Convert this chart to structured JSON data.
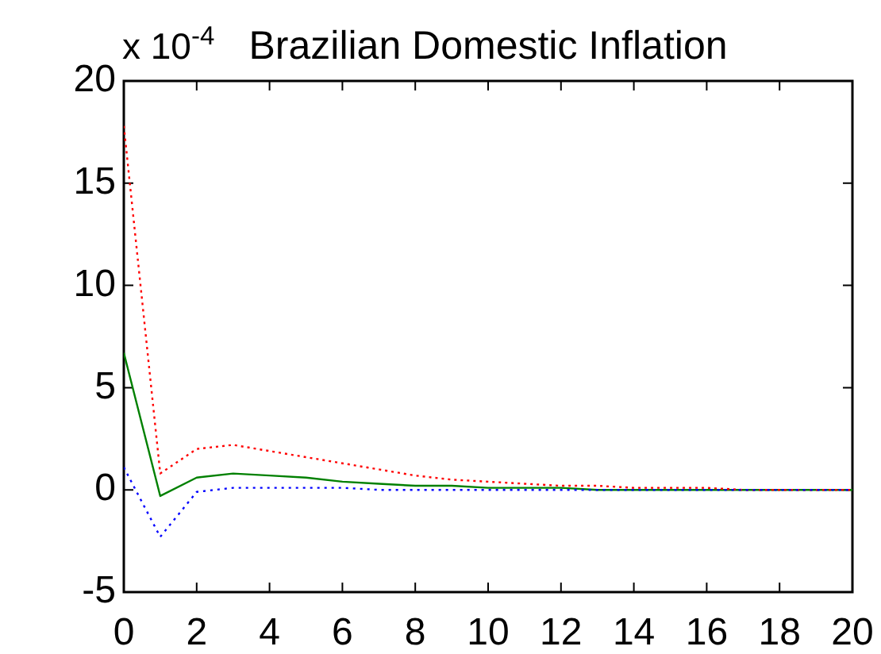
{
  "chart_data": {
    "type": "line",
    "title": "Brazilian Domestic Inflation",
    "annotations": [
      "x 10$^{-4}$"
    ],
    "x": [
      0,
      1,
      2,
      3,
      4,
      5,
      6,
      7,
      8,
      9,
      10,
      11,
      12,
      13,
      14,
      15,
      16,
      17,
      18,
      19,
      20
    ],
    "series": [
      {
        "color": "#008000",
        "line_style": "solid",
        "values": [
          6.7,
          -0.3,
          0.6,
          0.8,
          0.7,
          0.6,
          0.4,
          0.3,
          0.2,
          0.2,
          0.1,
          0.1,
          0.1,
          0,
          0,
          0,
          0,
          0,
          0,
          0,
          0
        ]
      },
      {
        "color": "#ff0000",
        "line_style": "dotted",
        "values": [
          17.8,
          0.8,
          2.0,
          2.2,
          1.9,
          1.6,
          1.3,
          1.0,
          0.7,
          0.5,
          0.4,
          0.3,
          0.2,
          0.2,
          0.1,
          0.1,
          0.1,
          0,
          0,
          0,
          0
        ]
      },
      {
        "color": "#0000ff",
        "line_style": "dotted",
        "values": [
          1.1,
          -2.3,
          -0.1,
          0.1,
          0.1,
          0.1,
          0.1,
          0,
          0,
          0,
          0,
          0,
          0,
          0,
          0,
          0,
          0,
          0,
          0,
          0,
          0
        ]
      }
    ],
    "xlim": [
      0,
      20
    ],
    "ylim": [
      -5,
      20
    ],
    "xticks": [
      0,
      2,
      4,
      6,
      8,
      10,
      12,
      14,
      16,
      18,
      20
    ],
    "yticks": [
      -5,
      0,
      5,
      10,
      15,
      20
    ],
    "grid": false,
    "legend": false
  }
}
